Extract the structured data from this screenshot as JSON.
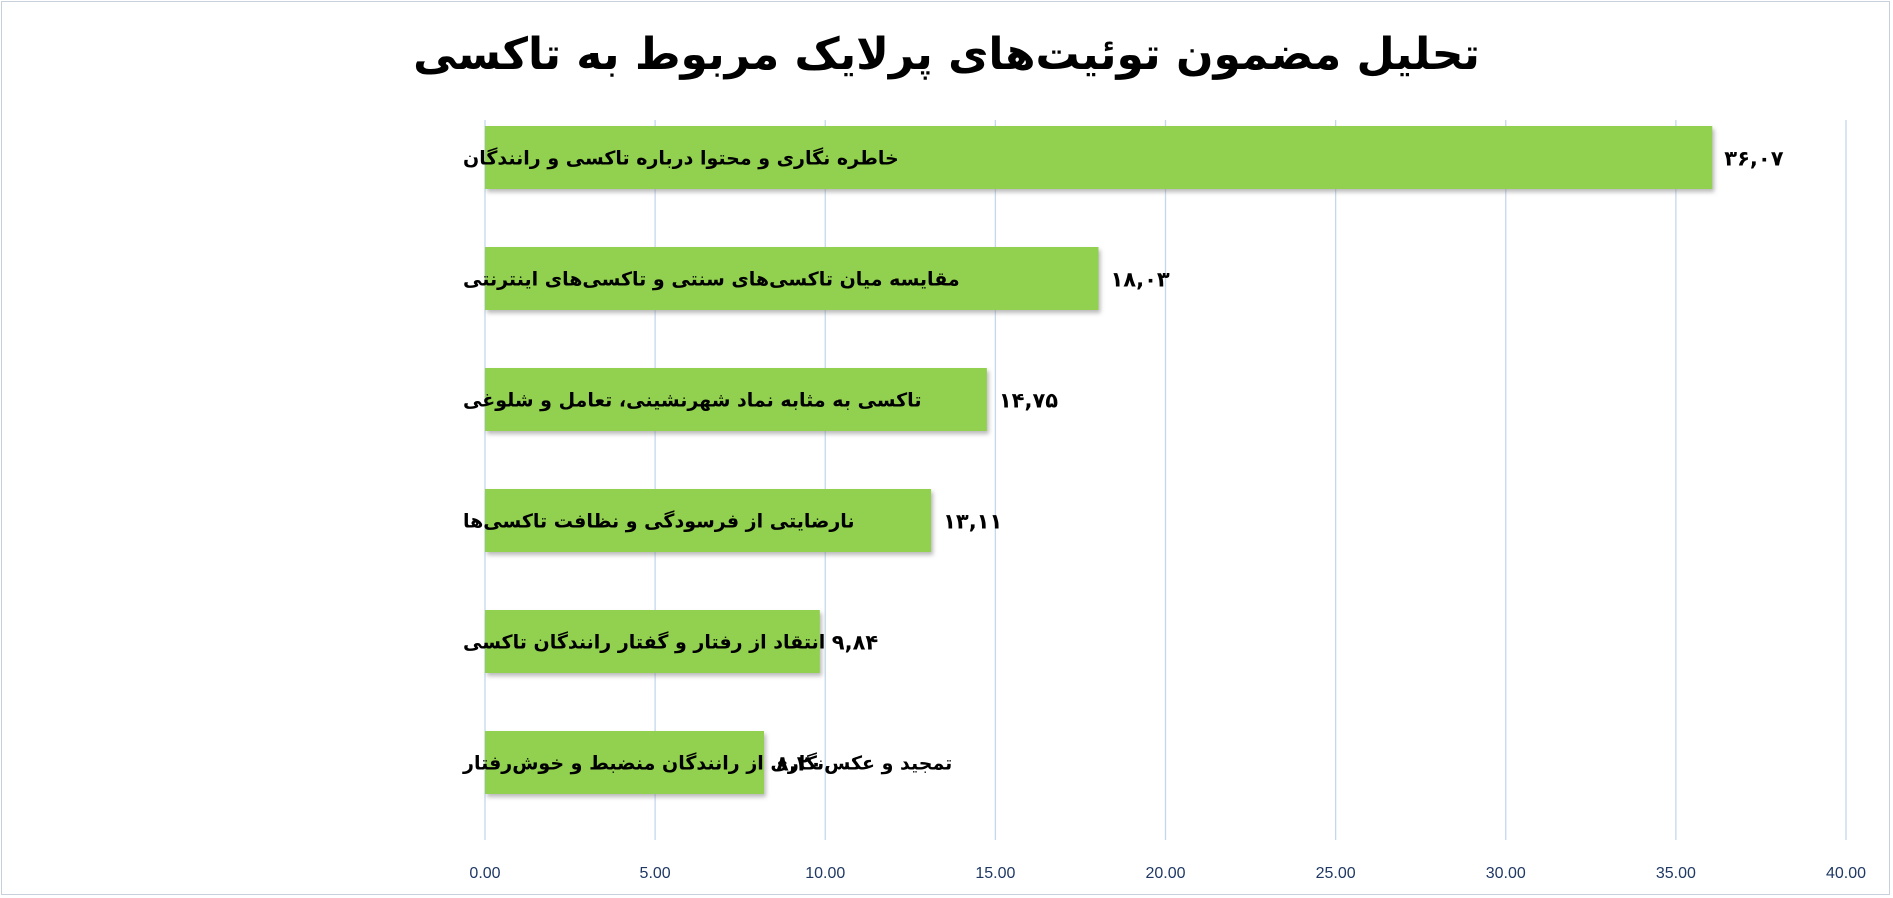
{
  "chart_data": {
    "type": "bar",
    "orientation": "horizontal",
    "title": "تحلیل مضمون توئیت‌های پرلایک مربوط به تاکسی",
    "categories": [
      "خاطره نگاری و  محتوا درباره تاکسی و رانندگان",
      "مقایسه میان تاکسی‌های سنتی و تاکسی‌های اینترنتی",
      "تاکسی به مثابه نماد شهرنشینی، تعامل و شلوغی",
      "نارضایتی از فرسودگی و نظافت تاکسی‌ها",
      "انتقاد از رفتار و گفتار رانندگان تاکسی",
      "تمجید و عکس‌نگاری از رانندگان منضبط و خوش‌رفتار"
    ],
    "values": [
      36.07,
      18.03,
      14.75,
      13.11,
      9.84,
      8.2
    ],
    "data_labels": [
      "۳۶,۰۷",
      "۱۸,۰۳",
      "۱۴,۷۵",
      "۱۳,۱۱",
      "۹,۸۴",
      "۸,۲۰"
    ],
    "xlim": [
      0,
      40
    ],
    "x_ticks": [
      0,
      5,
      10,
      15,
      20,
      25,
      30,
      35,
      40
    ],
    "x_tick_labels": [
      "0.00",
      "5.00",
      "10.00",
      "15.00",
      "20.00",
      "25.00",
      "30.00",
      "35.00",
      "40.00"
    ],
    "grid": "vertical",
    "legend": "none",
    "colors": {
      "bar": "#92d050",
      "bar_shadow": "#a6a6a6",
      "grid": "#c5d7ed",
      "tick_label": "#1f3864",
      "label": "#000000"
    }
  }
}
